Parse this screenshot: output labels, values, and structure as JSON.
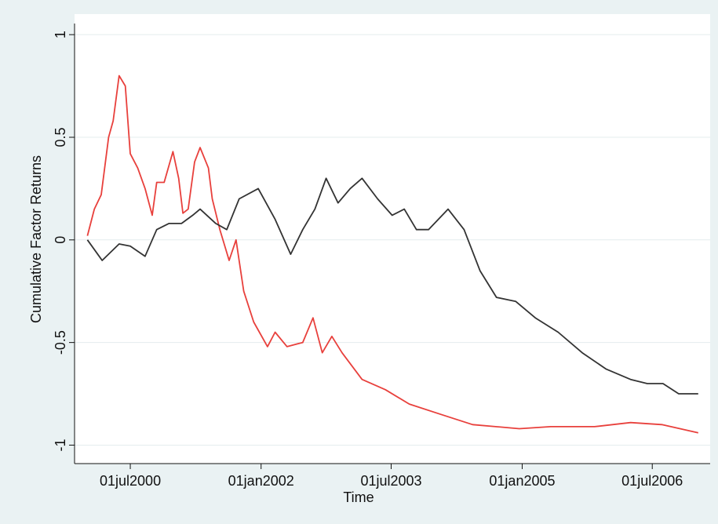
{
  "chart_data": {
    "type": "line",
    "xlabel": "Time",
    "ylabel": "Cumulative Factor Returns",
    "xlim": [
      "1999-11-10",
      "2007-03-01"
    ],
    "ylim": [
      -1.09,
      1.1
    ],
    "xticks": [
      {
        "value": "2000-07-01",
        "label": "01jul2000"
      },
      {
        "value": "2002-01-01",
        "label": "01jan2002"
      },
      {
        "value": "2003-07-01",
        "label": "01jul2003"
      },
      {
        "value": "2005-01-01",
        "label": "01jan2005"
      },
      {
        "value": "2006-07-01",
        "label": "01jul2006"
      }
    ],
    "yticks": [
      -1,
      -0.5,
      0,
      0.5,
      1
    ],
    "grid": true,
    "series": [
      {
        "color": "#e8403c",
        "x": [
          "2000-01-03",
          "2000-02-01",
          "2000-03-01",
          "2000-04-01",
          "2000-04-20",
          "2000-05-15",
          "2000-06-10",
          "2000-07-01",
          "2000-08-01",
          "2000-09-01",
          "2000-10-01",
          "2000-10-20",
          "2000-11-20",
          "2000-12-27",
          "2001-01-20",
          "2001-02-07",
          "2001-03-01",
          "2001-03-28",
          "2001-04-20",
          "2001-05-25",
          "2001-06-10",
          "2001-07-12",
          "2001-08-20",
          "2001-09-18",
          "2001-10-20",
          "2001-12-01",
          "2002-01-28",
          "2002-03-01",
          "2002-04-20",
          "2002-06-25",
          "2002-08-07",
          "2002-09-15",
          "2002-10-25",
          "2002-12-07",
          "2003-03-01",
          "2003-06-07",
          "2003-09-15",
          "2004-01-25",
          "2004-06-07",
          "2004-12-20",
          "2005-05-01",
          "2005-11-01",
          "2006-04-01",
          "2006-08-10",
          "2007-01-10"
        ],
        "values": [
          0.02,
          0.15,
          0.22,
          0.5,
          0.58,
          0.8,
          0.75,
          0.42,
          0.35,
          0.25,
          0.12,
          0.28,
          0.28,
          0.43,
          0.3,
          0.13,
          0.15,
          0.38,
          0.45,
          0.35,
          0.2,
          0.05,
          -0.1,
          0,
          -0.25,
          -0.4,
          -0.52,
          -0.45,
          -0.52,
          -0.5,
          -0.38,
          -0.55,
          -0.47,
          -0.55,
          -0.68,
          -0.73,
          -0.8,
          -0.85,
          -0.9,
          -0.92,
          -0.91,
          -0.91,
          -0.89,
          -0.9,
          -0.94
        ]
      },
      {
        "color": "#333333",
        "x": [
          "2000-01-03",
          "2000-03-05",
          "2000-05-15",
          "2000-07-01",
          "2000-09-01",
          "2000-10-20",
          "2000-12-10",
          "2001-02-01",
          "2001-03-20",
          "2001-04-20",
          "2001-06-25",
          "2001-08-10",
          "2001-10-01",
          "2001-12-20",
          "2002-03-01",
          "2002-05-05",
          "2002-06-25",
          "2002-08-15",
          "2002-10-01",
          "2002-11-20",
          "2003-01-10",
          "2003-03-01",
          "2003-05-05",
          "2003-07-05",
          "2003-08-25",
          "2003-10-15",
          "2003-12-05",
          "2004-02-25",
          "2004-05-02",
          "2004-07-08",
          "2004-09-15",
          "2004-12-05",
          "2005-02-25",
          "2005-06-01",
          "2005-09-10",
          "2005-12-20",
          "2006-04-01",
          "2006-06-10",
          "2006-08-15",
          "2006-10-20",
          "2007-01-10"
        ],
        "values": [
          0,
          -0.1,
          -0.02,
          -0.03,
          -0.08,
          0.05,
          0.08,
          0.08,
          0.12,
          0.15,
          0.08,
          0.05,
          0.2,
          0.25,
          0.1,
          -0.07,
          0.05,
          0.15,
          0.3,
          0.18,
          0.25,
          0.3,
          0.2,
          0.12,
          0.15,
          0.05,
          0.05,
          0.15,
          0.05,
          -0.15,
          -0.28,
          -0.3,
          -0.38,
          -0.45,
          -0.55,
          -0.63,
          -0.68,
          -0.7,
          -0.7,
          -0.75,
          -0.75
        ]
      }
    ]
  }
}
